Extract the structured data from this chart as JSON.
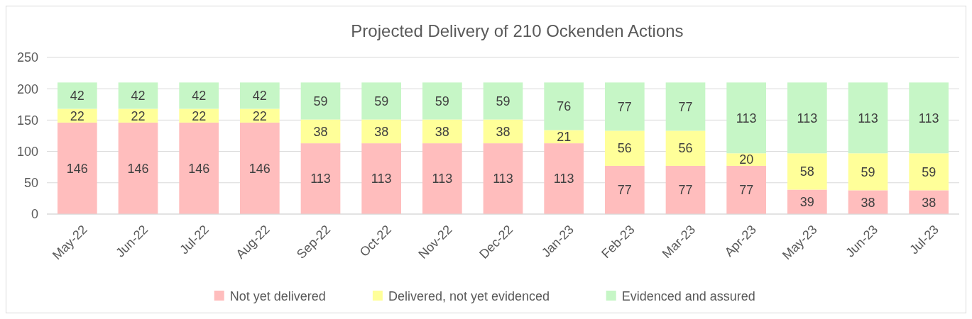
{
  "chart_data": {
    "type": "bar",
    "stacked": true,
    "title": "Projected Delivery of 210 Ockenden Actions",
    "categories": [
      "May-22",
      "Jun-22",
      "Jul-22",
      "Aug-22",
      "Sep-22",
      "Oct-22",
      "Nov-22",
      "Dec-22",
      "Jan-23",
      "Feb-23",
      "Mar-23",
      "Apr-23",
      "May-23",
      "Jun-23",
      "Jul-23"
    ],
    "series": [
      {
        "name": "Not yet delivered",
        "color": "#ffbdbd",
        "values": [
          146,
          146,
          146,
          146,
          113,
          113,
          113,
          113,
          113,
          77,
          77,
          77,
          39,
          38,
          38
        ]
      },
      {
        "name": "Delivered, not yet evidenced",
        "color": "#ffff99",
        "values": [
          22,
          22,
          22,
          22,
          38,
          38,
          38,
          38,
          21,
          56,
          56,
          20,
          58,
          59,
          59
        ]
      },
      {
        "name": "Evidenced and assured",
        "color": "#c6f6c6",
        "values": [
          42,
          42,
          42,
          42,
          59,
          59,
          59,
          59,
          76,
          77,
          77,
          113,
          113,
          113,
          113
        ]
      }
    ],
    "ylim": [
      0,
      250
    ],
    "yticks": [
      0,
      50,
      100,
      150,
      200,
      250
    ],
    "grid": "y",
    "legend": "bottom",
    "data_labels": true
  }
}
